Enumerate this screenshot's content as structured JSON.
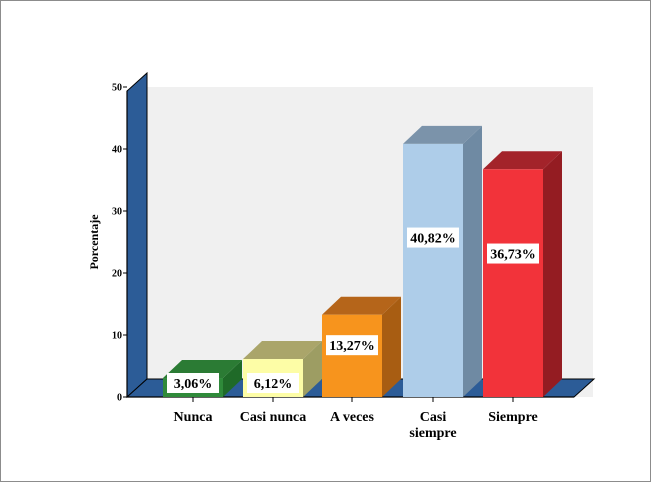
{
  "chart_data": {
    "type": "bar",
    "categories": [
      "Nunca",
      "Casi nunca",
      "A veces",
      "Casi siempre",
      "Siempre"
    ],
    "category_lines": [
      [
        "Nunca"
      ],
      [
        "Casi nunca"
      ],
      [
        "A veces"
      ],
      [
        "Casi",
        "siempre"
      ],
      [
        "Siempre"
      ]
    ],
    "values": [
      3.06,
      6.12,
      13.27,
      40.82,
      36.73
    ],
    "data_labels": [
      "3,06%",
      "6,12%",
      "13,27%",
      "40,82%",
      "36,73%"
    ],
    "ylabel": "Porcentaje",
    "ylim": [
      0,
      50
    ],
    "yticks": [
      0,
      10,
      20,
      30,
      40,
      50
    ],
    "ytick_labels": [
      "0",
      "10",
      "20",
      "30",
      "40",
      "50"
    ],
    "grid": false,
    "bar_colors": [
      {
        "front": "#2f8a3a",
        "side": "#1f6a28",
        "top": "#2b7b34"
      },
      {
        "front": "#fdfda6",
        "side": "#9d9d63",
        "top": "#aaa56a"
      },
      {
        "front": "#f7941d",
        "side": "#a85d12",
        "top": "#b5651a"
      },
      {
        "front": "#aecde9",
        "side": "#6f8aa3",
        "top": "#7b93aa"
      },
      {
        "front": "#f2333a",
        "side": "#941c22",
        "top": "#a3232a"
      }
    ],
    "wall_color": "#2c5c97",
    "plot_background": "#f0f0f0"
  }
}
